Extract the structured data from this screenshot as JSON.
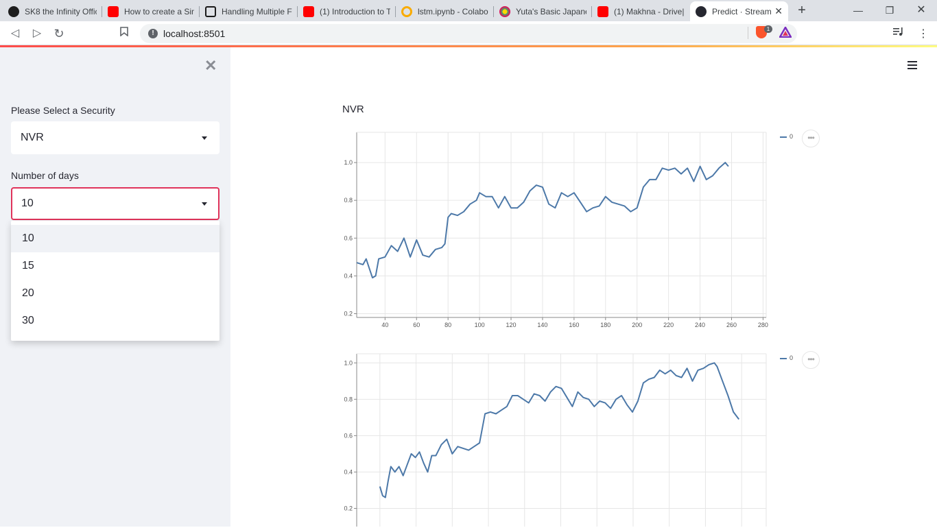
{
  "browser": {
    "tabs": [
      {
        "title": "SK8 the Infinity Offic",
        "favicon_color": "#1e1e1e"
      },
      {
        "title": "How to create a Sim",
        "favicon_color": "#ff0000"
      },
      {
        "title": "Handling Multiple F",
        "favicon_color": "#1a1a1a"
      },
      {
        "title": "(1) Introduction to T",
        "favicon_color": "#ff0000"
      },
      {
        "title": "lstm.ipynb - Colabo",
        "favicon_color": "#f9ab00"
      },
      {
        "title": "Yuta's Basic Japanes",
        "favicon_color": "#3cb371"
      },
      {
        "title": "(1) Makhna - Drive|",
        "favicon_color": "#ff0000"
      },
      {
        "title": "Predict · Stream",
        "favicon_color": "#262730"
      }
    ],
    "url": "localhost:8501",
    "extension_badge": "1"
  },
  "sidebar": {
    "security_label": "Please Select a Security",
    "security_value": "NVR",
    "days_label": "Number of days",
    "days_value": "10",
    "days_options": [
      "10",
      "15",
      "20",
      "30"
    ]
  },
  "main": {
    "title": "NVR"
  },
  "chart_data": [
    {
      "type": "line",
      "series": [
        {
          "name": "0",
          "color": "#4c78a8"
        }
      ],
      "xlim": [
        22,
        282
      ],
      "ylim": [
        0.18,
        1.16
      ],
      "xticks": [
        40,
        60,
        80,
        100,
        120,
        140,
        160,
        180,
        200,
        220,
        240,
        260,
        280
      ],
      "yticks": [
        0.2,
        0.4,
        0.6,
        0.8,
        1.0
      ],
      "points": [
        [
          22,
          0.47
        ],
        [
          26,
          0.46
        ],
        [
          28,
          0.49
        ],
        [
          30,
          0.44
        ],
        [
          32,
          0.39
        ],
        [
          34,
          0.4
        ],
        [
          36,
          0.49
        ],
        [
          40,
          0.5
        ],
        [
          44,
          0.56
        ],
        [
          48,
          0.53
        ],
        [
          52,
          0.6
        ],
        [
          56,
          0.5
        ],
        [
          60,
          0.59
        ],
        [
          64,
          0.51
        ],
        [
          68,
          0.5
        ],
        [
          72,
          0.54
        ],
        [
          76,
          0.55
        ],
        [
          78,
          0.57
        ],
        [
          80,
          0.71
        ],
        [
          82,
          0.73
        ],
        [
          86,
          0.72
        ],
        [
          90,
          0.74
        ],
        [
          94,
          0.78
        ],
        [
          98,
          0.8
        ],
        [
          100,
          0.84
        ],
        [
          104,
          0.82
        ],
        [
          108,
          0.82
        ],
        [
          112,
          0.76
        ],
        [
          116,
          0.82
        ],
        [
          120,
          0.76
        ],
        [
          124,
          0.76
        ],
        [
          128,
          0.79
        ],
        [
          132,
          0.85
        ],
        [
          136,
          0.88
        ],
        [
          140,
          0.87
        ],
        [
          144,
          0.78
        ],
        [
          148,
          0.76
        ],
        [
          152,
          0.84
        ],
        [
          156,
          0.82
        ],
        [
          160,
          0.84
        ],
        [
          164,
          0.79
        ],
        [
          168,
          0.74
        ],
        [
          172,
          0.76
        ],
        [
          176,
          0.77
        ],
        [
          180,
          0.82
        ],
        [
          184,
          0.79
        ],
        [
          188,
          0.78
        ],
        [
          192,
          0.77
        ],
        [
          196,
          0.74
        ],
        [
          200,
          0.76
        ],
        [
          204,
          0.87
        ],
        [
          208,
          0.91
        ],
        [
          212,
          0.91
        ],
        [
          216,
          0.97
        ],
        [
          220,
          0.96
        ],
        [
          224,
          0.97
        ],
        [
          228,
          0.94
        ],
        [
          232,
          0.97
        ],
        [
          236,
          0.9
        ],
        [
          240,
          0.98
        ],
        [
          244,
          0.91
        ],
        [
          248,
          0.93
        ],
        [
          252,
          0.97
        ],
        [
          256,
          1.0
        ],
        [
          258,
          0.98
        ]
      ]
    },
    {
      "type": "line",
      "series": [
        {
          "name": "0",
          "color": "#4c78a8"
        }
      ],
      "xlim": [
        0,
        300
      ],
      "ylim": [
        0.1,
        1.05
      ],
      "yticks": [
        0.2,
        0.4,
        0.6,
        0.8,
        1.0
      ],
      "points": [
        [
          17,
          0.32
        ],
        [
          19,
          0.27
        ],
        [
          21,
          0.26
        ],
        [
          23,
          0.35
        ],
        [
          25,
          0.43
        ],
        [
          28,
          0.4
        ],
        [
          31,
          0.43
        ],
        [
          34,
          0.38
        ],
        [
          37,
          0.44
        ],
        [
          40,
          0.5
        ],
        [
          43,
          0.48
        ],
        [
          46,
          0.51
        ],
        [
          49,
          0.45
        ],
        [
          52,
          0.4
        ],
        [
          55,
          0.49
        ],
        [
          58,
          0.49
        ],
        [
          62,
          0.55
        ],
        [
          66,
          0.58
        ],
        [
          70,
          0.5
        ],
        [
          74,
          0.54
        ],
        [
          78,
          0.53
        ],
        [
          82,
          0.52
        ],
        [
          86,
          0.54
        ],
        [
          90,
          0.56
        ],
        [
          94,
          0.72
        ],
        [
          98,
          0.73
        ],
        [
          102,
          0.72
        ],
        [
          106,
          0.74
        ],
        [
          110,
          0.76
        ],
        [
          114,
          0.82
        ],
        [
          118,
          0.82
        ],
        [
          122,
          0.8
        ],
        [
          126,
          0.78
        ],
        [
          130,
          0.83
        ],
        [
          134,
          0.82
        ],
        [
          138,
          0.79
        ],
        [
          142,
          0.84
        ],
        [
          146,
          0.87
        ],
        [
          150,
          0.86
        ],
        [
          154,
          0.81
        ],
        [
          158,
          0.76
        ],
        [
          162,
          0.84
        ],
        [
          166,
          0.81
        ],
        [
          170,
          0.8
        ],
        [
          174,
          0.76
        ],
        [
          178,
          0.79
        ],
        [
          182,
          0.78
        ],
        [
          186,
          0.75
        ],
        [
          190,
          0.8
        ],
        [
          194,
          0.82
        ],
        [
          198,
          0.77
        ],
        [
          202,
          0.73
        ],
        [
          206,
          0.79
        ],
        [
          210,
          0.89
        ],
        [
          214,
          0.91
        ],
        [
          218,
          0.92
        ],
        [
          222,
          0.96
        ],
        [
          226,
          0.94
        ],
        [
          230,
          0.96
        ],
        [
          234,
          0.93
        ],
        [
          238,
          0.92
        ],
        [
          242,
          0.97
        ],
        [
          246,
          0.9
        ],
        [
          250,
          0.96
        ],
        [
          254,
          0.97
        ],
        [
          258,
          0.99
        ],
        [
          262,
          1.0
        ],
        [
          264,
          0.98
        ],
        [
          268,
          0.9
        ],
        [
          272,
          0.82
        ],
        [
          276,
          0.73
        ],
        [
          280,
          0.69
        ]
      ]
    }
  ]
}
